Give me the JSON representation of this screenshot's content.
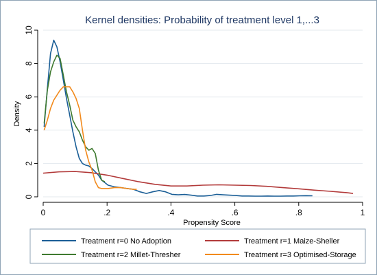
{
  "chart_data": {
    "type": "line",
    "title": "Kernel densities: Probability of treatment level 1,...3",
    "xlabel": "Propensity Score",
    "ylabel": "Density",
    "xlim": [
      0,
      1
    ],
    "ylim": [
      0,
      10
    ],
    "x_ticks": [
      {
        "value": 0,
        "label": "0"
      },
      {
        "value": 0.2,
        "label": ".2"
      },
      {
        "value": 0.4,
        "label": ".4"
      },
      {
        "value": 0.6,
        "label": ".6"
      },
      {
        "value": 0.8,
        "label": ".8"
      },
      {
        "value": 1,
        "label": "1"
      }
    ],
    "y_ticks": [
      {
        "value": 0,
        "label": "0"
      },
      {
        "value": 2,
        "label": "2"
      },
      {
        "value": 4,
        "label": "4"
      },
      {
        "value": 6,
        "label": "6"
      },
      {
        "value": 8,
        "label": "8"
      },
      {
        "value": 10,
        "label": "10"
      }
    ],
    "grid": true,
    "legend_position": "bottom",
    "series": [
      {
        "name": "Treatment r=0 No Adoption",
        "color": "#1a5e96",
        "x": [
          0.003,
          0.013,
          0.023,
          0.033,
          0.043,
          0.053,
          0.063,
          0.073,
          0.083,
          0.093,
          0.103,
          0.113,
          0.123,
          0.133,
          0.143,
          0.153,
          0.163,
          0.173,
          0.183,
          0.193,
          0.203,
          0.223,
          0.243,
          0.263,
          0.283,
          0.303,
          0.323,
          0.343,
          0.363,
          0.383,
          0.403,
          0.423,
          0.443,
          0.463,
          0.483,
          0.503,
          0.523,
          0.543,
          0.563,
          0.583,
          0.603,
          0.623,
          0.643,
          0.663,
          0.683,
          0.703,
          0.723,
          0.743,
          0.763,
          0.783,
          0.803,
          0.823,
          0.843
        ],
        "y": [
          4.2,
          6.5,
          8.6,
          9.4,
          9.0,
          8.1,
          7.0,
          5.9,
          4.9,
          3.9,
          3.0,
          2.3,
          2.0,
          1.9,
          1.85,
          1.7,
          1.5,
          1.3,
          1.0,
          0.85,
          0.7,
          0.6,
          0.55,
          0.5,
          0.45,
          0.3,
          0.2,
          0.3,
          0.38,
          0.3,
          0.15,
          0.12,
          0.14,
          0.1,
          0.05,
          0.05,
          0.08,
          0.15,
          0.12,
          0.1,
          0.08,
          0.05,
          0.05,
          0.04,
          0.04,
          0.05,
          0.04,
          0.04,
          0.05,
          0.05,
          0.06,
          0.07,
          0.06
        ]
      },
      {
        "name": "Treatment r=1 Maize-Sheller",
        "color": "#b23a3a",
        "x": [
          0.0,
          0.05,
          0.1,
          0.15,
          0.2,
          0.25,
          0.3,
          0.35,
          0.4,
          0.45,
          0.5,
          0.55,
          0.6,
          0.65,
          0.7,
          0.75,
          0.8,
          0.85,
          0.9,
          0.95,
          0.97
        ],
        "y": [
          1.42,
          1.5,
          1.52,
          1.45,
          1.3,
          1.1,
          0.9,
          0.75,
          0.65,
          0.65,
          0.7,
          0.72,
          0.7,
          0.68,
          0.63,
          0.55,
          0.48,
          0.4,
          0.33,
          0.25,
          0.2
        ]
      },
      {
        "name": "Treatment r=2 Millet-Thresher",
        "color": "#3f7a30",
        "x": [
          0.003,
          0.013,
          0.023,
          0.033,
          0.043,
          0.053,
          0.063,
          0.073,
          0.083,
          0.093,
          0.103,
          0.113,
          0.123,
          0.133,
          0.143,
          0.153,
          0.163,
          0.173,
          0.183,
          0.193
        ],
        "y": [
          4.4,
          6.4,
          7.5,
          8.1,
          8.5,
          8.3,
          7.3,
          6.3,
          5.5,
          4.6,
          4.2,
          3.9,
          3.4,
          3.0,
          2.8,
          2.9,
          2.6,
          1.6,
          1.0,
          0.9
        ]
      },
      {
        "name": "Treatment r=3 Optimised-Storage",
        "color": "#f28a1c",
        "x": [
          0.003,
          0.013,
          0.023,
          0.033,
          0.043,
          0.053,
          0.063,
          0.073,
          0.083,
          0.093,
          0.103,
          0.113,
          0.123,
          0.133,
          0.143,
          0.153,
          0.163,
          0.173,
          0.183,
          0.203,
          0.223,
          0.243,
          0.263,
          0.283,
          0.293
        ],
        "y": [
          4.0,
          4.6,
          5.3,
          5.8,
          6.1,
          6.4,
          6.6,
          6.6,
          6.6,
          6.3,
          5.9,
          5.3,
          4.0,
          2.8,
          2.1,
          1.6,
          0.9,
          0.55,
          0.5,
          0.5,
          0.55,
          0.55,
          0.5,
          0.45,
          0.45
        ]
      }
    ]
  },
  "colors": {
    "plot_background": "#ffffff",
    "grid": "#e3e8ee",
    "frame": "#8fa3b5",
    "title": "#1f3864"
  }
}
